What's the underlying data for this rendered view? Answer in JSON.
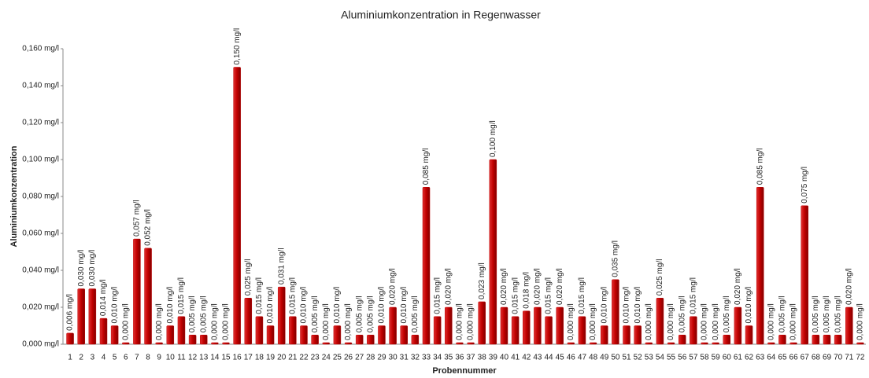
{
  "chart_data": {
    "type": "bar",
    "title": "Aluminiumkonzentration in Regenwasser",
    "x_label": "Probennummer",
    "y_label": "Aluminiumkonzentration",
    "color": "#c00000",
    "categories": [
      "1",
      "2",
      "3",
      "4",
      "5",
      "6",
      "7",
      "8",
      "9",
      "10",
      "11",
      "12",
      "13",
      "14",
      "15",
      "16",
      "17",
      "18",
      "19",
      "20",
      "21",
      "22",
      "23",
      "24",
      "25",
      "26",
      "27",
      "28",
      "29",
      "30",
      "31",
      "32",
      "33",
      "34",
      "35",
      "36",
      "37",
      "38",
      "39",
      "40",
      "41",
      "42",
      "43",
      "44",
      "45",
      "46",
      "47",
      "48",
      "49",
      "50",
      "51",
      "52",
      "53",
      "54",
      "55",
      "56",
      "57",
      "58",
      "59",
      "60",
      "61",
      "62",
      "63",
      "64",
      "65",
      "66",
      "67",
      "68",
      "69",
      "70",
      "71",
      "72"
    ],
    "values": [
      0.006,
      0.03,
      0.03,
      0.014,
      0.01,
      0.0,
      0.057,
      0.052,
      0.0,
      0.01,
      0.015,
      0.005,
      0.005,
      0.0,
      0.0,
      0.15,
      0.025,
      0.015,
      0.01,
      0.031,
      0.015,
      0.01,
      0.005,
      0.0,
      0.01,
      0.0,
      0.005,
      0.005,
      0.01,
      0.02,
      0.01,
      0.005,
      0.085,
      0.015,
      0.02,
      0.0,
      0.0,
      0.023,
      0.1,
      0.02,
      0.015,
      0.018,
      0.02,
      0.015,
      0.02,
      0.0,
      0.015,
      0.0,
      0.01,
      0.035,
      0.01,
      0.01,
      0.0,
      0.025,
      0.0,
      0.005,
      0.015,
      0.0,
      0.0,
      0.005,
      0.02,
      0.01,
      0.085,
      0.0,
      0.005,
      0.0,
      0.075,
      0.005,
      0.005,
      0.005,
      0.02,
      0.0
    ],
    "value_labels": [
      "0,006 mg/l",
      "0,030 mg/l",
      "0,030 mg/l",
      "0,014 mg/l",
      "0,010 mg/l",
      "0,000 mg/l",
      "0,057 mg/l",
      "0,052 mg/l",
      "0,000 mg/l",
      "0,010 mg/l",
      "0,015 mg/l",
      "0,005 mg/l",
      "0,005 mg/l",
      "0,000 mg/l",
      "0,000 mg/l",
      "0,150 mg/l",
      "0,025 mg/l",
      "0,015 mg/l",
      "0,010 mg/l",
      "0,031 mg/l",
      "0,015 mg/l",
      "0,010 mg/l",
      "0,005 mg/l",
      "0,000 mg/l",
      "0,010 mg/l",
      "0,000 mg/l",
      "0,005 mg/l",
      "0,005 mg/l",
      "0,010 mg/l",
      "0,020 mg/l",
      "0,010 mg/l",
      "0,005 mg/l",
      "0,085 mg/l",
      "0,015 mg/l",
      "0,020 mg/l",
      "0,000 mg/l",
      "0,000 mg/l",
      "0,023 mg/l",
      "0,100 mg/l",
      "0,020 mg/l",
      "0,015 mg/l",
      "0,018 mg/l",
      "0,020 mg/l",
      "0,015 mg/l",
      "0,020 mg/l",
      "0,000 mg/l",
      "0,015 mg/l",
      "0,000 mg/l",
      "0,010 mg/l",
      "0,035 mg/l",
      "0,010 mg/l",
      "0,010 mg/l",
      "0,000 mg/l",
      "0,025 mg/l",
      "0,000 mg/l",
      "0,005 mg/l",
      "0,015 mg/l",
      "0,000 mg/l",
      "0,000 mg/l",
      "0,005 mg/l",
      "0,020 mg/l",
      "0,010 mg/l",
      "0,085 mg/l",
      "0,000 mg/l",
      "0,005 mg/l",
      "0,000 mg/l",
      "0,075 mg/l",
      "0,005 mg/l",
      "0,005 mg/l",
      "0,005 mg/l",
      "0,020 mg/l",
      "0,000 mg/l"
    ],
    "ylim": [
      0,
      0.16
    ],
    "yticks": [
      {
        "value": 0,
        "label": "0,000 mg/l"
      },
      {
        "value": 0.02,
        "label": "0,020 mg/l"
      },
      {
        "value": 0.04,
        "label": "0,040 mg/l"
      },
      {
        "value": 0.06,
        "label": "0,060 mg/l"
      },
      {
        "value": 0.08,
        "label": "0,080 mg/l"
      },
      {
        "value": 0.1,
        "label": "0,100 mg/l"
      },
      {
        "value": 0.12,
        "label": "0,120 mg/l"
      },
      {
        "value": 0.14,
        "label": "0,140 mg/l"
      },
      {
        "value": 0.16,
        "label": "0,160 mg/l"
      }
    ],
    "grid": false
  }
}
